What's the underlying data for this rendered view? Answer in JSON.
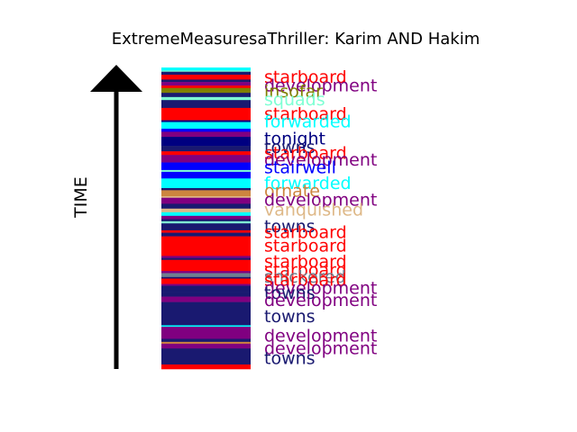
{
  "chart_data": {
    "type": "barcode-timeline",
    "title": "ExtremeMeasuresaThriller: Karim AND Hakim",
    "ylabel": "TIME",
    "colors": {
      "starboard": "#ff0000",
      "development": "#800080",
      "insofar": "#808000",
      "squads": "#7fffd4",
      "forwarded": "#00ffff",
      "tonight": "#000080",
      "towns": "#191970",
      "stairwell": "#0000ff",
      "ornate": "#cd853f",
      "vanquished": "#deb887",
      "snickered": "#708090"
    },
    "stripes": [
      {
        "word": "forwarded",
        "start": 0.0,
        "end": 0.01
      },
      {
        "word": "squads",
        "start": 0.01,
        "end": 0.014
      },
      {
        "word": "towns",
        "start": 0.014,
        "end": 0.024
      },
      {
        "word": "starboard",
        "start": 0.024,
        "end": 0.04
      },
      {
        "word": "towns",
        "start": 0.04,
        "end": 0.048
      },
      {
        "word": "development",
        "start": 0.048,
        "end": 0.06
      },
      {
        "word": "starboard",
        "start": 0.06,
        "end": 0.068
      },
      {
        "word": "insofar",
        "start": 0.068,
        "end": 0.084
      },
      {
        "word": "towns",
        "start": 0.084,
        "end": 0.098
      },
      {
        "word": "squads",
        "start": 0.098,
        "end": 0.108
      },
      {
        "word": "towns",
        "start": 0.108,
        "end": 0.134
      },
      {
        "word": "starboard",
        "start": 0.134,
        "end": 0.175
      },
      {
        "word": "tonight",
        "start": 0.175,
        "end": 0.181
      },
      {
        "word": "forwarded",
        "start": 0.181,
        "end": 0.203
      },
      {
        "word": "stairwell",
        "start": 0.203,
        "end": 0.213
      },
      {
        "word": "development",
        "start": 0.213,
        "end": 0.23
      },
      {
        "word": "tonight",
        "start": 0.23,
        "end": 0.26
      },
      {
        "word": "towns",
        "start": 0.26,
        "end": 0.278
      },
      {
        "word": "starboard",
        "start": 0.278,
        "end": 0.29
      },
      {
        "word": "development",
        "start": 0.29,
        "end": 0.315
      },
      {
        "word": "stairwell",
        "start": 0.315,
        "end": 0.34
      },
      {
        "word": "squads",
        "start": 0.34,
        "end": 0.346
      },
      {
        "word": "stairwell",
        "start": 0.346,
        "end": 0.368
      },
      {
        "word": "forwarded",
        "start": 0.368,
        "end": 0.4
      },
      {
        "word": "towns",
        "start": 0.4,
        "end": 0.407
      },
      {
        "word": "ornate",
        "start": 0.407,
        "end": 0.427
      },
      {
        "word": "vanquished",
        "start": 0.427,
        "end": 0.432
      },
      {
        "word": "development",
        "start": 0.432,
        "end": 0.452
      },
      {
        "word": "towns",
        "start": 0.452,
        "end": 0.468
      },
      {
        "word": "vanquished",
        "start": 0.468,
        "end": 0.48
      },
      {
        "word": "forwarded",
        "start": 0.48,
        "end": 0.492
      },
      {
        "word": "development",
        "start": 0.492,
        "end": 0.503
      },
      {
        "word": "towns",
        "start": 0.503,
        "end": 0.51
      },
      {
        "word": "squads",
        "start": 0.51,
        "end": 0.517
      },
      {
        "word": "towns",
        "start": 0.517,
        "end": 0.54
      },
      {
        "word": "starboard",
        "start": 0.54,
        "end": 0.548
      },
      {
        "word": "towns",
        "start": 0.548,
        "end": 0.56
      },
      {
        "word": "starboard",
        "start": 0.56,
        "end": 0.625
      },
      {
        "word": "development",
        "start": 0.625,
        "end": 0.632
      },
      {
        "word": "towns",
        "start": 0.632,
        "end": 0.638
      },
      {
        "word": "starboard",
        "start": 0.638,
        "end": 0.675
      },
      {
        "word": "development",
        "start": 0.675,
        "end": 0.682
      },
      {
        "word": "snickered",
        "start": 0.682,
        "end": 0.695
      },
      {
        "word": "towns",
        "start": 0.695,
        "end": 0.7
      },
      {
        "word": "starboard",
        "start": 0.7,
        "end": 0.718
      },
      {
        "word": "development",
        "start": 0.718,
        "end": 0.724
      },
      {
        "word": "towns",
        "start": 0.724,
        "end": 0.745
      },
      {
        "word": "towns",
        "start": 0.745,
        "end": 0.76
      },
      {
        "word": "development",
        "start": 0.76,
        "end": 0.778
      },
      {
        "word": "towns",
        "start": 0.778,
        "end": 0.795
      },
      {
        "word": "towns",
        "start": 0.795,
        "end": 0.855
      },
      {
        "word": "forwarded",
        "start": 0.855,
        "end": 0.86
      },
      {
        "word": "development",
        "start": 0.86,
        "end": 0.9
      },
      {
        "word": "towns",
        "start": 0.9,
        "end": 0.91
      },
      {
        "word": "ornate",
        "start": 0.91,
        "end": 0.916
      },
      {
        "word": "development",
        "start": 0.916,
        "end": 0.932
      },
      {
        "word": "towns",
        "start": 0.932,
        "end": 0.985
      },
      {
        "word": "starboard",
        "start": 0.985,
        "end": 1.0
      }
    ],
    "labels": [
      {
        "word": "starboard",
        "at": 0.03
      },
      {
        "word": "development",
        "at": 0.058
      },
      {
        "word": "insofar",
        "at": 0.078
      },
      {
        "word": "squads",
        "at": 0.104
      },
      {
        "word": "starboard",
        "at": 0.152
      },
      {
        "word": "forwarded",
        "at": 0.178
      },
      {
        "word": "tonight",
        "at": 0.235
      },
      {
        "word": "towns",
        "at": 0.262
      },
      {
        "word": "starboard",
        "at": 0.282
      },
      {
        "word": "development",
        "at": 0.305
      },
      {
        "word": "stairwell",
        "at": 0.33
      },
      {
        "word": "forwarded",
        "at": 0.382
      },
      {
        "word": "ornate",
        "at": 0.408
      },
      {
        "word": "development",
        "at": 0.438
      },
      {
        "word": "vanquished",
        "at": 0.47
      },
      {
        "word": "towns",
        "at": 0.525
      },
      {
        "word": "starboard",
        "at": 0.545
      },
      {
        "word": "starboard",
        "at": 0.59
      },
      {
        "word": "starboard",
        "at": 0.642
      },
      {
        "word": "starboard",
        "at": 0.67
      },
      {
        "word": "snickered",
        "at": 0.692
      },
      {
        "word": "starboard",
        "at": 0.703
      },
      {
        "word": "development",
        "at": 0.73
      },
      {
        "word": "towns",
        "at": 0.746
      },
      {
        "word": "development",
        "at": 0.77
      },
      {
        "word": "towns",
        "at": 0.824
      },
      {
        "word": "development",
        "at": 0.888
      },
      {
        "word": "development",
        "at": 0.93
      },
      {
        "word": "towns",
        "at": 0.963
      }
    ]
  }
}
